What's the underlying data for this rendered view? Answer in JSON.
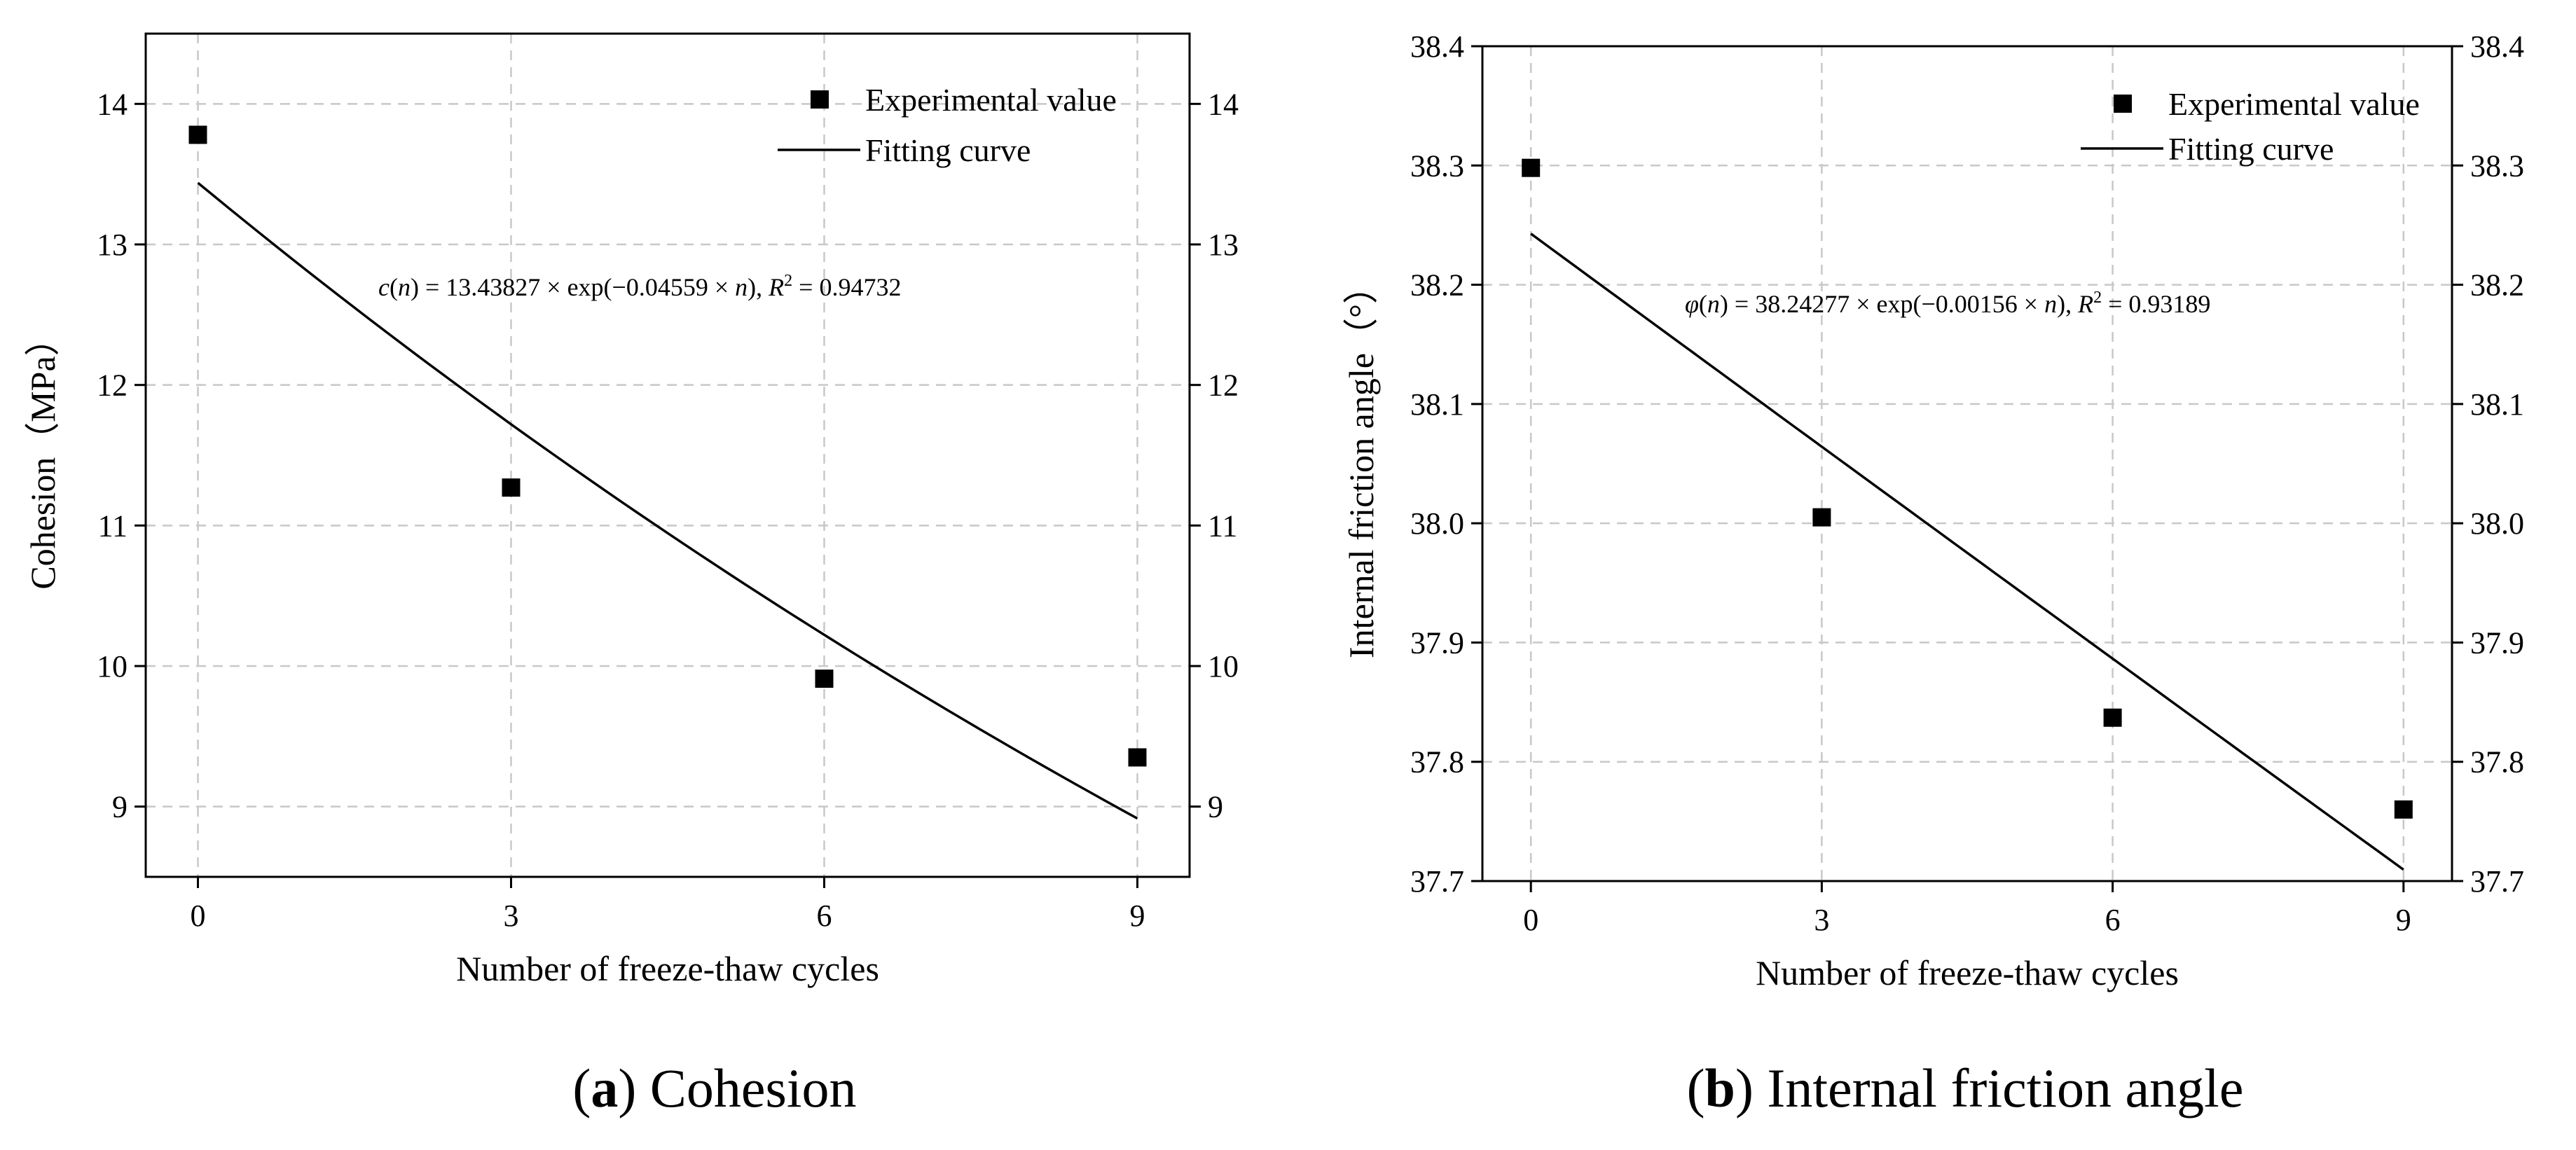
{
  "chart_data": [
    {
      "type": "scatter",
      "panel": "(a)",
      "caption": {
        "letter": "a",
        "text": "Cohesion"
      },
      "xlabel": "Number of freeze-thaw cycles",
      "ylabel": "Cohesion（MPa）",
      "xlim": [
        -0.5,
        9.5
      ],
      "ylim": [
        8.5,
        14.5
      ],
      "x_ticks": [
        0,
        3,
        6,
        9
      ],
      "y_ticks": [
        9,
        10,
        11,
        12,
        13,
        14
      ],
      "tick_decimals": 0,
      "grid": true,
      "right_axis": true,
      "legend_position": "top-right",
      "series": [
        {
          "name": "Experimental value",
          "kind": "scatter",
          "x": [
            0,
            3,
            6,
            9
          ],
          "y": [
            13.78,
            11.27,
            9.91,
            9.35
          ]
        },
        {
          "name": "Fitting curve",
          "kind": "line",
          "function": "exp",
          "a": 13.43827,
          "b": -0.04559,
          "x_range": [
            0,
            9
          ]
        }
      ],
      "equation": {
        "fn": "c",
        "var": "n",
        "a": "13.43827",
        "b": "−0.04559",
        "r2": "0.94732"
      }
    },
    {
      "type": "scatter",
      "panel": "(b)",
      "caption": {
        "letter": "b",
        "text": "Internal friction angle"
      },
      "xlabel": "Number of freeze-thaw cycles",
      "ylabel": "Internal friction angle（°）",
      "xlim": [
        -0.5,
        9.5
      ],
      "ylim": [
        37.7,
        38.4
      ],
      "x_ticks": [
        0,
        3,
        6,
        9
      ],
      "y_ticks": [
        37.7,
        37.8,
        37.9,
        38.0,
        38.1,
        38.2,
        38.3,
        38.4
      ],
      "tick_decimals": 1,
      "grid": true,
      "right_axis": true,
      "legend_position": "top-right",
      "series": [
        {
          "name": "Experimental value",
          "kind": "scatter",
          "x": [
            0,
            3,
            6,
            9
          ],
          "y": [
            38.298,
            38.005,
            37.837,
            37.76
          ]
        },
        {
          "name": "Fitting curve",
          "kind": "line",
          "function": "exp",
          "a": 38.24277,
          "b": -0.00156,
          "x_range": [
            0,
            9
          ]
        }
      ],
      "equation": {
        "fn": "φ",
        "var": "n",
        "a": "38.24277",
        "b": "−0.00156",
        "r2": "0.93189"
      }
    }
  ]
}
